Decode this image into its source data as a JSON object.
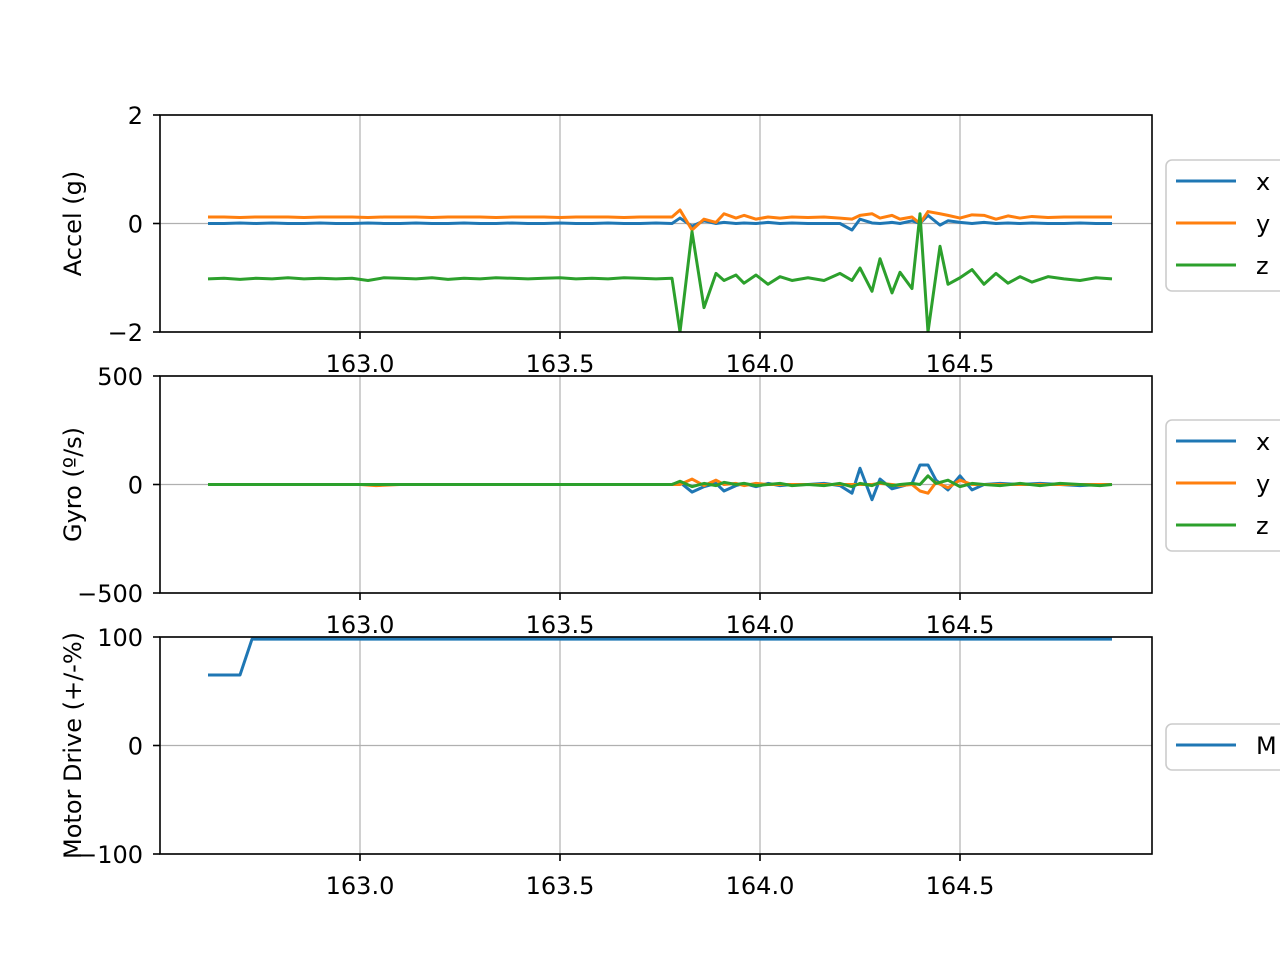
{
  "colors": {
    "x": "#1f77b4",
    "y": "#ff7f0e",
    "z": "#2ca02c",
    "grid": "#b0b0b0",
    "axis": "#000000"
  },
  "chart_data": [
    {
      "type": "line",
      "title": "",
      "ylabel": "Accel (g)",
      "xlabel": "",
      "xlim": [
        162.5,
        164.98
      ],
      "ylim": [
        -2,
        2
      ],
      "xticks": [
        163.0,
        163.5,
        164.0,
        164.5
      ],
      "xtick_labels": [
        "163.0",
        "163.5",
        "164.0",
        "164.5"
      ],
      "yticks": [
        -2,
        0,
        2
      ],
      "ytick_labels": [
        "−2",
        "0",
        "2"
      ],
      "grid": true,
      "legend": {
        "placement": "right-outside",
        "entries": [
          "x",
          "y",
          "z"
        ]
      },
      "x": [
        162.62,
        162.66,
        162.7,
        162.74,
        162.78,
        162.82,
        162.86,
        162.9,
        162.94,
        162.98,
        163.02,
        163.06,
        163.1,
        163.14,
        163.18,
        163.22,
        163.26,
        163.3,
        163.34,
        163.38,
        163.42,
        163.46,
        163.5,
        163.54,
        163.58,
        163.62,
        163.66,
        163.7,
        163.74,
        163.78,
        163.8,
        163.83,
        163.86,
        163.89,
        163.91,
        163.94,
        163.96,
        163.99,
        164.02,
        164.05,
        164.08,
        164.12,
        164.16,
        164.2,
        164.23,
        164.25,
        164.28,
        164.3,
        164.33,
        164.35,
        164.38,
        164.4,
        164.42,
        164.45,
        164.47,
        164.5,
        164.53,
        164.56,
        164.59,
        164.62,
        164.65,
        164.68,
        164.72,
        164.76,
        164.8,
        164.84,
        164.88
      ],
      "series": [
        {
          "name": "x",
          "values": [
            0.0,
            0.0,
            0.01,
            0.0,
            0.01,
            0.0,
            0.0,
            0.01,
            0.0,
            0.0,
            0.01,
            0.0,
            0.0,
            0.01,
            0.0,
            0.0,
            0.01,
            0.0,
            0.0,
            0.01,
            0.0,
            0.0,
            0.01,
            0.0,
            0.0,
            0.01,
            0.0,
            0.0,
            0.01,
            0.0,
            0.1,
            -0.05,
            0.05,
            0.0,
            0.02,
            0.0,
            0.01,
            0.0,
            0.02,
            0.0,
            0.01,
            0.0,
            0.0,
            0.0,
            -0.12,
            0.08,
            0.01,
            0.0,
            0.02,
            0.0,
            0.05,
            0.0,
            0.15,
            -0.03,
            0.05,
            0.02,
            0.0,
            0.02,
            0.0,
            0.01,
            0.0,
            0.01,
            0.0,
            0.0,
            0.01,
            0.0,
            0.0
          ]
        },
        {
          "name": "y",
          "values": [
            0.12,
            0.12,
            0.11,
            0.12,
            0.12,
            0.12,
            0.11,
            0.12,
            0.12,
            0.12,
            0.11,
            0.12,
            0.12,
            0.12,
            0.11,
            0.12,
            0.12,
            0.12,
            0.11,
            0.12,
            0.12,
            0.12,
            0.11,
            0.12,
            0.12,
            0.12,
            0.11,
            0.12,
            0.12,
            0.12,
            0.25,
            -0.12,
            0.08,
            0.02,
            0.18,
            0.1,
            0.15,
            0.08,
            0.12,
            0.1,
            0.12,
            0.11,
            0.12,
            0.1,
            0.08,
            0.15,
            0.18,
            0.1,
            0.15,
            0.08,
            0.12,
            0.0,
            0.22,
            0.18,
            0.15,
            0.1,
            0.16,
            0.15,
            0.08,
            0.14,
            0.1,
            0.13,
            0.11,
            0.12,
            0.12,
            0.12,
            0.12
          ]
        },
        {
          "name": "z",
          "values": [
            -1.02,
            -1.01,
            -1.03,
            -1.01,
            -1.02,
            -1.0,
            -1.02,
            -1.01,
            -1.02,
            -1.01,
            -1.05,
            -1.0,
            -1.01,
            -1.02,
            -1.0,
            -1.03,
            -1.01,
            -1.02,
            -1.0,
            -1.01,
            -1.02,
            -1.01,
            -1.0,
            -1.02,
            -1.01,
            -1.02,
            -1.0,
            -1.01,
            -1.02,
            -1.01,
            -2.0,
            -0.15,
            -1.55,
            -0.92,
            -1.05,
            -0.95,
            -1.1,
            -0.95,
            -1.12,
            -0.98,
            -1.05,
            -1.0,
            -1.05,
            -0.92,
            -1.05,
            -0.82,
            -1.25,
            -0.65,
            -1.28,
            -0.9,
            -1.2,
            0.18,
            -2.0,
            -0.42,
            -1.12,
            -1.0,
            -0.85,
            -1.12,
            -0.92,
            -1.1,
            -0.98,
            -1.08,
            -0.98,
            -1.02,
            -1.05,
            -1.0,
            -1.02
          ]
        }
      ]
    },
    {
      "type": "line",
      "title": "",
      "ylabel": "Gyro (º/s)",
      "xlabel": "",
      "xlim": [
        162.5,
        164.98
      ],
      "ylim": [
        -500,
        500
      ],
      "xticks": [
        163.0,
        163.5,
        164.0,
        164.5
      ],
      "xtick_labels": [
        "163.0",
        "163.5",
        "164.0",
        "164.5"
      ],
      "yticks": [
        -500,
        0,
        500
      ],
      "ytick_labels": [
        "−500",
        "0",
        "500"
      ],
      "grid": true,
      "legend": {
        "placement": "right-outside",
        "entries": [
          "x",
          "y",
          "z"
        ]
      },
      "x": [
        162.62,
        162.7,
        162.8,
        162.9,
        163.0,
        163.04,
        163.1,
        163.2,
        163.3,
        163.4,
        163.5,
        163.6,
        163.7,
        163.78,
        163.8,
        163.83,
        163.86,
        163.89,
        163.91,
        163.94,
        163.96,
        163.99,
        164.02,
        164.05,
        164.08,
        164.12,
        164.16,
        164.2,
        164.23,
        164.25,
        164.28,
        164.3,
        164.33,
        164.35,
        164.38,
        164.4,
        164.42,
        164.44,
        164.47,
        164.5,
        164.53,
        164.56,
        164.6,
        164.65,
        164.7,
        164.75,
        164.8,
        164.85,
        164.88
      ],
      "series": [
        {
          "name": "x",
          "values": [
            0,
            0,
            0,
            0,
            0,
            0,
            0,
            0,
            0,
            0,
            0,
            0,
            0,
            0,
            10,
            -35,
            -10,
            5,
            -30,
            -5,
            5,
            -10,
            5,
            -5,
            0,
            0,
            5,
            -5,
            -40,
            75,
            -70,
            25,
            -20,
            -10,
            5,
            90,
            90,
            20,
            -25,
            40,
            -25,
            0,
            5,
            0,
            5,
            0,
            -5,
            0,
            0
          ]
        },
        {
          "name": "y",
          "values": [
            0,
            0,
            0,
            0,
            0,
            -5,
            0,
            0,
            0,
            0,
            0,
            0,
            0,
            0,
            0,
            25,
            -5,
            20,
            0,
            5,
            -5,
            5,
            0,
            0,
            0,
            0,
            0,
            0,
            0,
            0,
            0,
            5,
            0,
            -5,
            0,
            -30,
            -40,
            10,
            -15,
            20,
            0,
            0,
            0,
            0,
            0,
            0,
            0,
            0,
            0
          ]
        },
        {
          "name": "z",
          "values": [
            0,
            0,
            0,
            0,
            0,
            0,
            0,
            0,
            0,
            0,
            0,
            0,
            0,
            0,
            15,
            -10,
            5,
            -5,
            10,
            0,
            5,
            -5,
            0,
            5,
            -5,
            0,
            -5,
            5,
            -10,
            5,
            -5,
            10,
            -5,
            0,
            5,
            0,
            40,
            5,
            20,
            -10,
            5,
            0,
            -5,
            5,
            -5,
            5,
            0,
            -5,
            0
          ]
        }
      ]
    },
    {
      "type": "line",
      "title": "",
      "ylabel": "Motor Drive (+/-%)",
      "xlabel": "",
      "xlim": [
        162.5,
        164.98
      ],
      "ylim": [
        -100,
        100
      ],
      "xticks": [
        163.0,
        163.5,
        164.0,
        164.5
      ],
      "xtick_labels": [
        "163.0",
        "163.5",
        "164.0",
        "164.5"
      ],
      "yticks": [
        -100,
        0,
        100
      ],
      "ytick_labels": [
        "−100",
        "0",
        "100"
      ],
      "grid": true,
      "legend": {
        "placement": "right-outside",
        "entries": [
          "M"
        ]
      },
      "x": [
        162.62,
        162.7,
        162.73,
        164.88
      ],
      "series": [
        {
          "name": "M",
          "values": [
            65,
            65,
            98,
            98
          ]
        }
      ]
    }
  ]
}
